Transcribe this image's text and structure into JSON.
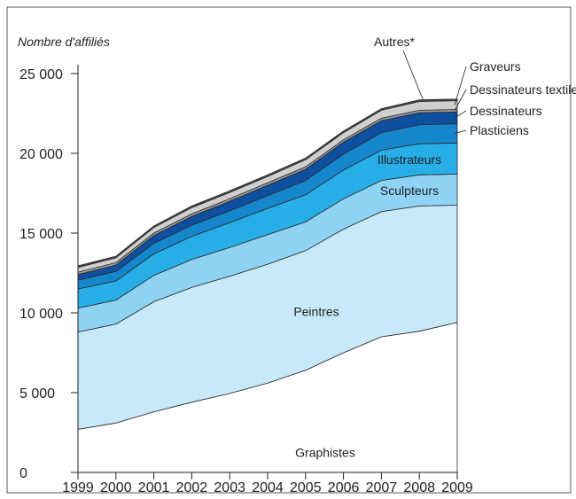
{
  "chart_data": {
    "type": "area",
    "stacked": true,
    "title": "",
    "ylabel": "Nombre d'affiliés",
    "xlabel": "",
    "x": [
      "1999",
      "2000",
      "2001",
      "2002",
      "2003",
      "2004",
      "2005",
      "2006",
      "2007",
      "2008",
      "2009"
    ],
    "ylim": [
      0,
      25000
    ],
    "yticks": [
      0,
      5000,
      10000,
      15000,
      20000,
      25000
    ],
    "ytick_labels": [
      "0",
      "5 000",
      "10 000",
      "15 000",
      "20 000",
      "25 000"
    ],
    "series": [
      {
        "name": "Graphistes",
        "color": "#ffffff",
        "values": [
          2700,
          3100,
          3800,
          4400,
          4950,
          5600,
          6400,
          7500,
          8500,
          8850,
          9400
        ]
      },
      {
        "name": "Peintres",
        "color": "#c8e9f9",
        "values": [
          6100,
          6200,
          6900,
          7200,
          7350,
          7450,
          7500,
          7750,
          7850,
          7850,
          7350
        ]
      },
      {
        "name": "Sculpteurs",
        "color": "#8fd3f4",
        "values": [
          1500,
          1500,
          1650,
          1750,
          1800,
          1850,
          1800,
          1900,
          1950,
          1950,
          1950
        ]
      },
      {
        "name": "Illustrateurs",
        "color": "#27aee6",
        "values": [
          1200,
          1200,
          1350,
          1450,
          1550,
          1650,
          1700,
          1800,
          1900,
          1950,
          1950
        ]
      },
      {
        "name": "Plasticiens",
        "color": "#1686cc",
        "values": [
          550,
          600,
          650,
          700,
          750,
          800,
          900,
          1000,
          1100,
          1200,
          1200
        ]
      },
      {
        "name": "Dessinateurs",
        "color": "#0e4fa0",
        "values": [
          350,
          400,
          500,
          550,
          600,
          650,
          700,
          750,
          750,
          750,
          750
        ]
      },
      {
        "name": "Dessinateurs textiles",
        "color": "#9e9e9e",
        "values": [
          150,
          150,
          150,
          150,
          150,
          150,
          150,
          150,
          150,
          150,
          150
        ]
      },
      {
        "name": "Graveurs",
        "color": "#cfcfcf",
        "values": [
          300,
          300,
          350,
          400,
          400,
          400,
          450,
          450,
          500,
          550,
          550
        ]
      },
      {
        "name": "Autres*",
        "color": "#4a4a4a",
        "values": [
          100,
          100,
          100,
          100,
          100,
          100,
          100,
          100,
          100,
          100,
          100
        ]
      }
    ],
    "legend": "inline-labels",
    "grid": false
  }
}
